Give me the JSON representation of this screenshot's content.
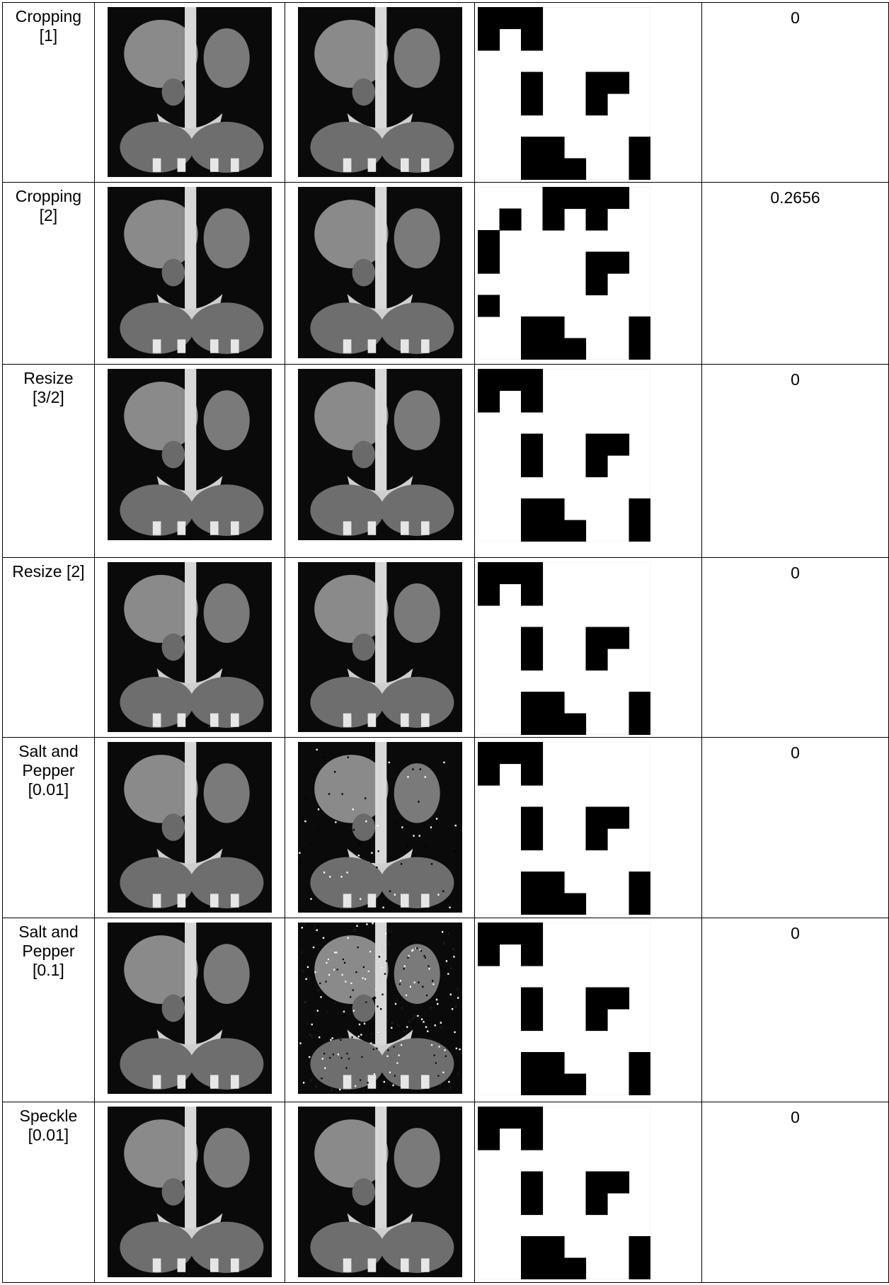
{
  "table": {
    "rows": [
      [
        "Cropping [1]",
        "0"
      ],
      [
        "Cropping [2]",
        "0.2656"
      ],
      [
        "Resize [3/2]",
        "0"
      ],
      [
        "Resize [2]",
        "0"
      ],
      [
        "Salt and Pepper [0.01]",
        "0"
      ],
      [
        "Salt and Pepper [0.1]",
        "0"
      ],
      [
        "Speckle [0.01]",
        "0"
      ]
    ]
  }
}
